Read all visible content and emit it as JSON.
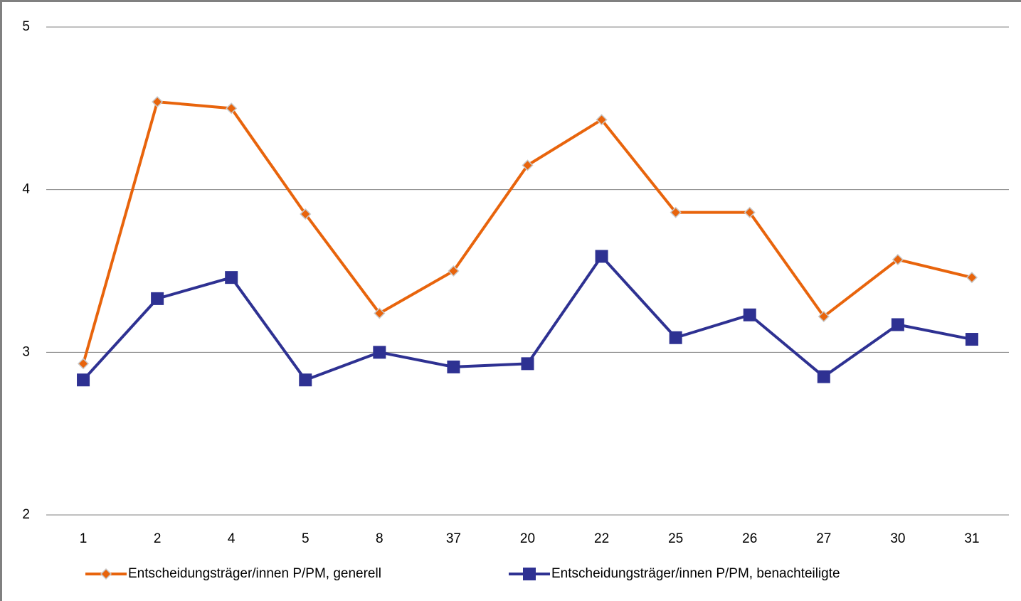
{
  "chart_data": {
    "type": "line",
    "categories": [
      "1",
      "2",
      "4",
      "5",
      "8",
      "37",
      "20",
      "22",
      "25",
      "26",
      "27",
      "30",
      "31"
    ],
    "series": [
      {
        "name": "Entscheidungsträger/innen P/PM, generell",
        "color": "#e8640c",
        "marker": "diamond",
        "values": [
          2.93,
          4.54,
          4.5,
          3.85,
          3.24,
          3.5,
          4.15,
          4.43,
          3.86,
          3.86,
          3.22,
          3.57,
          3.46
        ]
      },
      {
        "name": "Entscheidungsträger/innen P/PM, benachteiligte",
        "color": "#2e3192",
        "marker": "square",
        "values": [
          2.83,
          3.33,
          3.46,
          2.83,
          3.0,
          2.91,
          2.93,
          3.59,
          3.09,
          3.23,
          2.85,
          3.17,
          3.08
        ]
      }
    ],
    "ylim": [
      2,
      5
    ],
    "yticks": [
      2,
      3,
      4,
      5
    ],
    "grid": true,
    "legend": "bottom"
  }
}
